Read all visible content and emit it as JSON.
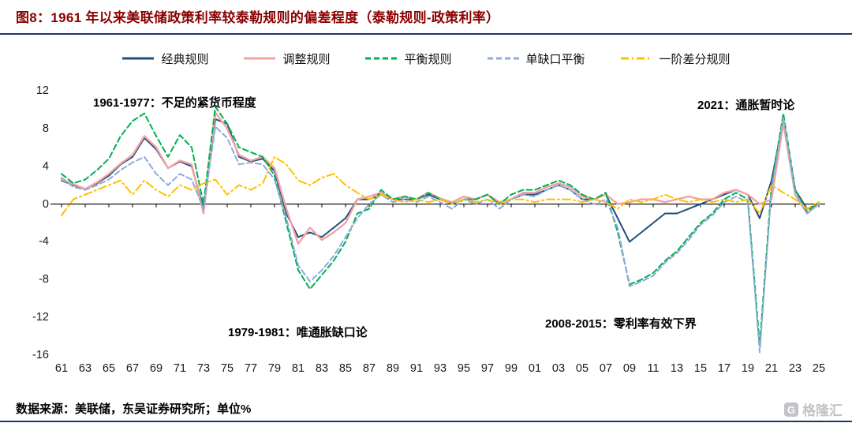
{
  "header": {
    "title": "图8：1961 年以来美联储政策利率较泰勒规则的偏差程度（泰勒规则-政策利率）"
  },
  "footer": {
    "source": "数据来源：美联储，东吴证券研究所；单位%",
    "watermark": "格隆汇"
  },
  "annotations": [
    {
      "text": "1961-1977：不足的紧货币程度"
    },
    {
      "text": "2021：通胀暂时论"
    },
    {
      "text": "1979-1981：唯通胀缺口论"
    },
    {
      "text": "2008-2015：零利率有效下界"
    }
  ],
  "colors": {
    "title_red": "#8B0000",
    "divider_navy": "#1F3864",
    "axis_black": "#000000",
    "watermark_grey": "#C3C3C8"
  },
  "chart_data": {
    "type": "line",
    "title": "1961 年以来美联储政策利率较泰勒规则的偏差程度（泰勒规则-政策利率）",
    "xlabel": "",
    "ylabel": "单位%",
    "grid": false,
    "legend_position": "top",
    "x_start": 1961,
    "x_end": 2025,
    "x_step": 1,
    "xlim": [
      1961,
      2025
    ],
    "ylim": [
      -16,
      12
    ],
    "y_ticks": [
      12,
      8,
      4,
      0,
      -4,
      -8,
      -12,
      -16
    ],
    "x_tick_labels": [
      "61",
      "63",
      "65",
      "67",
      "69",
      "71",
      "73",
      "75",
      "77",
      "79",
      "81",
      "83",
      "85",
      "87",
      "89",
      "91",
      "93",
      "95",
      "97",
      "99",
      "01",
      "03",
      "05",
      "07",
      "09",
      "11",
      "13",
      "15",
      "17",
      "19",
      "21",
      "23",
      "25"
    ],
    "series": [
      {
        "name": "经典规则",
        "color": "#1F4E79",
        "line_style": "solid",
        "values": [
          2.5,
          2.0,
          1.6,
          2.2,
          3.0,
          4.2,
          5.0,
          7.0,
          5.8,
          3.8,
          4.5,
          4.0,
          -0.5,
          9.0,
          8.5,
          5.0,
          4.5,
          4.8,
          3.5,
          -1.0,
          -3.5,
          -3.0,
          -3.5,
          -2.5,
          -1.5,
          0.5,
          0.5,
          1.0,
          0.5,
          0.5,
          0.5,
          1.0,
          0.5,
          0.0,
          0.5,
          0.5,
          1.0,
          0.0,
          0.5,
          1.0,
          1.0,
          1.5,
          2.0,
          1.5,
          0.5,
          0.5,
          1.0,
          -1.5,
          -4.0,
          -3.0,
          -2.0,
          -1.0,
          -1.0,
          -0.5,
          0.0,
          0.5,
          1.0,
          1.5,
          1.0,
          -1.5,
          2.5,
          9.0,
          1.5,
          -0.5,
          0.0
        ]
      },
      {
        "name": "调整规则",
        "color": "#F4A2A2",
        "line_style": "solid",
        "values": [
          2.6,
          2.1,
          1.6,
          2.3,
          3.2,
          4.3,
          5.2,
          7.2,
          6.0,
          3.8,
          4.6,
          4.2,
          -1.0,
          9.7,
          8.0,
          5.2,
          4.6,
          5.0,
          3.8,
          -0.5,
          -4.2,
          -2.5,
          -3.8,
          -3.0,
          -2.0,
          0.5,
          0.8,
          1.2,
          0.5,
          0.8,
          0.5,
          1.2,
          0.6,
          0.2,
          0.8,
          0.5,
          1.0,
          0.2,
          0.5,
          1.2,
          1.2,
          1.8,
          2.2,
          1.8,
          0.8,
          0.5,
          1.0,
          0.0,
          0.2,
          0.5,
          0.5,
          0.2,
          0.5,
          0.8,
          0.5,
          0.5,
          1.2,
          1.5,
          1.0,
          0.0,
          0.5,
          8.6,
          1.0,
          -1.0,
          0.0
        ]
      },
      {
        "name": "平衡规则",
        "color": "#00B050",
        "line_style": "dashed",
        "values": [
          3.2,
          2.2,
          2.6,
          3.6,
          4.8,
          7.2,
          8.8,
          9.6,
          7.2,
          5.0,
          7.3,
          6.0,
          0.0,
          10.3,
          8.5,
          6.0,
          5.5,
          5.0,
          3.0,
          -2.0,
          -7.0,
          -9.0,
          -7.5,
          -6.0,
          -4.0,
          -1.0,
          -0.5,
          1.5,
          0.5,
          0.8,
          0.5,
          1.2,
          0.5,
          0.0,
          0.5,
          0.5,
          1.0,
          0.0,
          1.0,
          1.5,
          1.5,
          2.0,
          2.5,
          2.0,
          1.0,
          0.5,
          1.2,
          -3.0,
          -8.5,
          -8.0,
          -7.3,
          -6.0,
          -5.0,
          -3.5,
          -2.0,
          -1.0,
          0.5,
          1.2,
          0.5,
          -15.0,
          2.0,
          9.6,
          1.5,
          -0.8,
          0.2
        ]
      },
      {
        "name": "单缺口平衡",
        "color": "#8FAADC",
        "line_style": "dashed",
        "values": [
          2.8,
          1.8,
          1.5,
          2.0,
          2.6,
          3.6,
          4.4,
          5.0,
          3.2,
          2.0,
          3.2,
          2.6,
          -0.5,
          8.2,
          7.0,
          4.2,
          4.4,
          4.2,
          2.6,
          -1.5,
          -6.5,
          -8.2,
          -7.0,
          -5.5,
          -3.5,
          -1.5,
          0.0,
          1.0,
          0.2,
          0.5,
          0.2,
          0.8,
          0.2,
          -0.5,
          0.5,
          0.0,
          0.5,
          -0.5,
          0.5,
          1.0,
          0.8,
          1.5,
          2.0,
          1.5,
          0.5,
          0.0,
          0.5,
          -2.5,
          -8.7,
          -8.2,
          -7.6,
          -6.2,
          -5.2,
          -3.8,
          -2.2,
          -1.2,
          0.2,
          0.8,
          0.2,
          -15.7,
          1.5,
          9.2,
          1.2,
          -1.0,
          0.0
        ]
      },
      {
        "name": "一阶差分规则",
        "color": "#FFC000",
        "line_style": "dashdot",
        "values": [
          -1.2,
          0.5,
          1.0,
          1.5,
          2.0,
          2.5,
          1.0,
          2.5,
          1.5,
          0.8,
          2.0,
          1.5,
          2.2,
          2.6,
          1.0,
          2.0,
          1.5,
          2.2,
          5.0,
          4.2,
          2.5,
          2.0,
          2.8,
          3.2,
          2.0,
          1.2,
          0.5,
          1.0,
          0.5,
          0.2,
          0.5,
          0.2,
          0.5,
          0.0,
          0.5,
          0.2,
          0.5,
          0.0,
          0.5,
          0.5,
          0.2,
          0.5,
          0.5,
          0.5,
          0.2,
          0.5,
          0.2,
          -0.5,
          0.5,
          0.2,
          0.5,
          1.0,
          0.5,
          0.2,
          0.5,
          0.2,
          0.5,
          0.2,
          0.5,
          -1.0,
          2.0,
          1.2,
          0.5,
          -0.5,
          0.2
        ]
      }
    ]
  }
}
